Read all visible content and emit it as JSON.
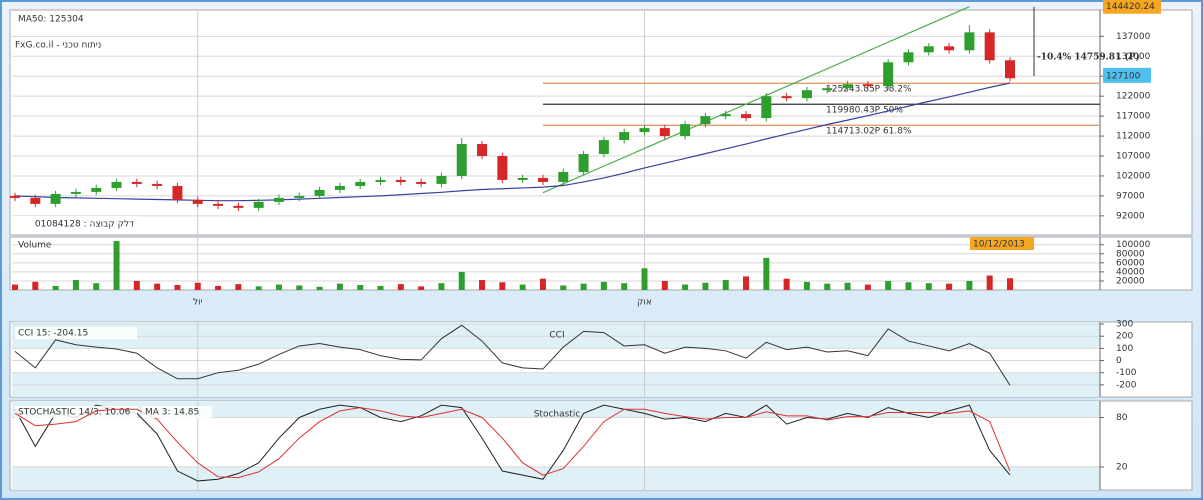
{
  "chart_data": [
    {
      "type": "candlestick",
      "title": "FxG.co.il - ניתוח טכני",
      "subtitle": "דלק קבוצה : 01084128",
      "open": [
        97000,
        96500,
        95000,
        97500,
        98000,
        99000,
        100500,
        100000,
        99500,
        96000,
        95000,
        94500,
        94000,
        95500,
        96500,
        97000,
        98500,
        99500,
        100500,
        101000,
        100500,
        100000,
        102000,
        110000,
        107000,
        101000,
        101500,
        100500,
        103000,
        107500,
        111000,
        113000,
        114000,
        112000,
        115000,
        117000,
        117500,
        116500,
        122000,
        121500,
        123500,
        124000,
        125000,
        124500,
        130500,
        133000,
        134500,
        133500,
        138000,
        131000
      ],
      "high": [
        97800,
        97300,
        98300,
        98800,
        99800,
        101300,
        101300,
        100800,
        100300,
        96800,
        95800,
        95300,
        96300,
        97300,
        97800,
        99300,
        100300,
        101300,
        101800,
        101800,
        101300,
        102800,
        111500,
        110800,
        107800,
        102300,
        102300,
        103800,
        108300,
        111800,
        113800,
        114800,
        114800,
        115800,
        117800,
        118300,
        118300,
        122800,
        122800,
        124300,
        124800,
        125800,
        125800,
        131300,
        133800,
        135300,
        135300,
        139800,
        138800,
        131800
      ],
      "low": [
        95700,
        94200,
        94200,
        96700,
        97200,
        98200,
        99200,
        98700,
        95200,
        94200,
        93700,
        93200,
        93200,
        94700,
        95700,
        96200,
        97700,
        98700,
        99700,
        99700,
        99200,
        99200,
        101200,
        106200,
        100200,
        100200,
        99700,
        99700,
        102200,
        106700,
        110200,
        112200,
        111200,
        111200,
        114200,
        116200,
        115700,
        115700,
        120700,
        120700,
        122700,
        123200,
        123700,
        123700,
        129700,
        132200,
        132700,
        132700,
        130200,
        125700
      ],
      "close": [
        96500,
        95000,
        97500,
        98000,
        99000,
        100500,
        100000,
        99500,
        96000,
        95000,
        94500,
        94000,
        95500,
        96500,
        97000,
        98500,
        99500,
        100500,
        101000,
        100500,
        100000,
        102000,
        110000,
        107000,
        101000,
        101500,
        100500,
        103000,
        107500,
        111000,
        113000,
        114000,
        112000,
        115000,
        117000,
        117500,
        116500,
        122000,
        121500,
        123500,
        124000,
        125000,
        124500,
        130500,
        133000,
        134500,
        133500,
        138000,
        131000,
        126500
      ],
      "up_color": "#2e9e2e",
      "down_color": "#d62728",
      "series": [
        {
          "name": "MA50: 125304",
          "color": "#3a3fa0",
          "values": [
            97000,
            96800,
            96600,
            96500,
            96400,
            96300,
            96200,
            96100,
            96000,
            95900,
            95800,
            95800,
            95900,
            96000,
            96200,
            96400,
            96600,
            96800,
            97000,
            97300,
            97600,
            97900,
            98300,
            98600,
            98800,
            99000,
            99200,
            99600,
            100500,
            101500,
            102700,
            104000,
            105200,
            106400,
            107600,
            108800,
            110000,
            111300,
            112500,
            113700,
            114900,
            116000,
            117100,
            118300,
            119500,
            120700,
            121800,
            123000,
            124200,
            125304
          ]
        }
      ],
      "ylim": [
        87200,
        143600
      ],
      "yticks": [
        92000,
        97000,
        102000,
        107000,
        112000,
        117000,
        122000,
        127000,
        132000,
        137000
      ],
      "grid": true,
      "trendline": {
        "color": "#4caf50",
        "x": [
          26,
          47
        ],
        "values": [
          97800,
          144420.24
        ]
      },
      "last_price": 127100,
      "fib_start": 26,
      "fib_levels": [
        {
          "value": 125243.85,
          "label": "125243.85P  38.2%",
          "color": "#e0915f"
        },
        {
          "value": 119980.43,
          "label": "119980.43P  50%",
          "color": "#333333"
        },
        {
          "value": 114713.02,
          "label": "114713.02P  61.8%",
          "color": "#e0915f"
        }
      ],
      "change_label": "-10.4% 14759.81 (P)",
      "date_label": "10/12/2013"
    },
    {
      "type": "bar",
      "title": "Volume",
      "categories": [
        null,
        null,
        null,
        null,
        null,
        null,
        null,
        null,
        null,
        "יול",
        null,
        null,
        null,
        null,
        null,
        null,
        null,
        null,
        null,
        null,
        null,
        null,
        null,
        null,
        null,
        null,
        null,
        null,
        null,
        null,
        null,
        "אוק",
        null,
        null,
        null,
        null,
        null,
        null,
        null,
        null,
        null,
        null,
        null,
        null,
        null,
        null,
        null,
        null,
        null,
        null
      ],
      "values": [
        12000,
        18000,
        9000,
        22000,
        15000,
        108000,
        20000,
        14000,
        11000,
        16000,
        9000,
        13000,
        8000,
        12000,
        10000,
        7000,
        14000,
        11000,
        9000,
        13000,
        8000,
        15000,
        40000,
        22000,
        17000,
        12000,
        25000,
        10000,
        14000,
        18000,
        15000,
        48000,
        20000,
        12000,
        16000,
        22000,
        30000,
        71000,
        25000,
        18000,
        14000,
        16000,
        12000,
        20000,
        17000,
        15000,
        14000,
        20000,
        32000,
        26000
      ],
      "ylim": [
        0,
        117000
      ],
      "yticks": [
        20000,
        40000,
        60000,
        80000,
        100000
      ],
      "grid": true
    },
    {
      "type": "line",
      "title": "CCI",
      "series": [
        {
          "name": "CCI 15: -204.15",
          "color": "#333333",
          "values": [
            75,
            -60,
            170,
            130,
            110,
            95,
            60,
            -60,
            -150,
            -150,
            -100,
            -80,
            -30,
            50,
            120,
            140,
            110,
            90,
            40,
            10,
            5,
            180,
            290,
            160,
            -20,
            -60,
            -70,
            110,
            240,
            230,
            120,
            130,
            60,
            110,
            100,
            80,
            20,
            150,
            90,
            110,
            70,
            80,
            40,
            260,
            160,
            120,
            80,
            140,
            60,
            -204.15
          ]
        }
      ],
      "ylim": [
        -300,
        317
      ],
      "yticks": [
        -200,
        -100,
        0,
        100,
        200,
        300
      ],
      "zones": [
        -100,
        100
      ],
      "grid": true
    },
    {
      "type": "line",
      "title": "Stochastic",
      "series": [
        {
          "name": "STOCHASTIC 14/3: 10.06",
          "color": "#222222",
          "values": [
            90,
            45,
            85,
            80,
            95,
            90,
            85,
            60,
            15,
            3,
            5,
            12,
            25,
            55,
            80,
            90,
            95,
            92,
            80,
            75,
            82,
            95,
            92,
            55,
            15,
            10,
            5,
            40,
            85,
            95,
            90,
            85,
            78,
            80,
            75,
            85,
            80,
            95,
            72,
            80,
            78,
            85,
            80,
            92,
            85,
            80,
            88,
            95,
            40,
            10.06
          ]
        },
        {
          "name": "MA 3: 14.85",
          "color": "#e03030",
          "values": [
            85,
            70,
            72,
            75,
            88,
            90,
            90,
            78,
            50,
            25,
            8,
            7,
            14,
            30,
            55,
            75,
            88,
            92,
            88,
            82,
            80,
            85,
            90,
            80,
            55,
            25,
            10,
            18,
            45,
            75,
            90,
            90,
            85,
            81,
            78,
            80,
            80,
            87,
            82,
            82,
            77,
            81,
            81,
            86,
            86,
            86,
            85,
            88,
            75,
            14.85
          ]
        }
      ],
      "ylim": [
        -8,
        100
      ],
      "yticks": [
        20,
        80
      ],
      "zones": [
        20,
        80
      ],
      "grid": true
    }
  ]
}
